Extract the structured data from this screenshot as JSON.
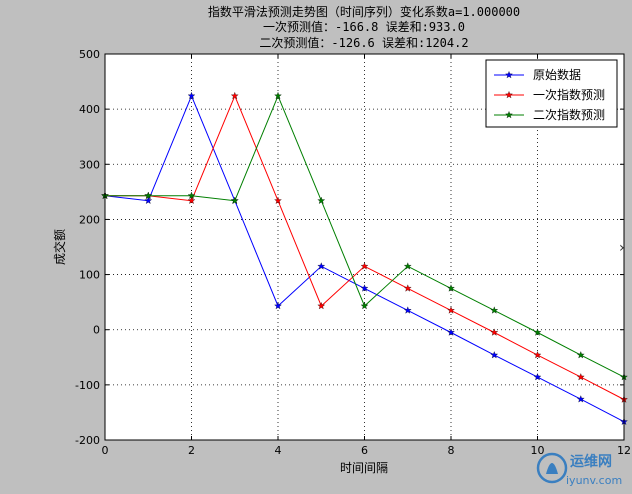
{
  "chart_data": {
    "type": "line",
    "title_lines": [
      "指数平滑法预测走势图（时间序列）变化系数a=1.000000",
      "一次预测值：-166.8   误差和:933.0",
      "二次预测值：-126.6   误差和:1204.2"
    ],
    "xlabel": "时间间隔",
    "ylabel": "成交额",
    "xlim": [
      0,
      12
    ],
    "ylim": [
      -200,
      500
    ],
    "xticks": [
      0,
      2,
      4,
      6,
      8,
      10,
      12
    ],
    "yticks": [
      -200,
      -100,
      0,
      100,
      200,
      300,
      400,
      500
    ],
    "grid": true,
    "legend_position": "top-right",
    "series": [
      {
        "name": "原始数据",
        "color": "#0000ff",
        "x": [
          0,
          1,
          2,
          3,
          4,
          5,
          6,
          7,
          8,
          9,
          10,
          11,
          12
        ],
        "y": [
          243,
          234,
          424,
          234,
          43,
          115,
          75,
          35,
          -5,
          -46,
          -86,
          -126,
          -166.8
        ]
      },
      {
        "name": "一次指数预测",
        "color": "#ff0000",
        "x": [
          0,
          1,
          2,
          3,
          4,
          5,
          6,
          7,
          8,
          9,
          10,
          11,
          12
        ],
        "y": [
          243,
          243,
          234,
          424,
          234,
          43,
          115,
          75,
          35,
          -5,
          -46,
          -86,
          -126.6
        ]
      },
      {
        "name": "二次指数预测",
        "color": "#007f00",
        "x": [
          0,
          1,
          2,
          3,
          4,
          5,
          6,
          7,
          8,
          9,
          10,
          11,
          12
        ],
        "y": [
          243,
          243,
          243,
          234,
          424,
          234,
          43,
          115,
          75,
          35,
          -5,
          -46,
          -86
        ]
      }
    ]
  },
  "watermark": {
    "brand": "运维网",
    "domain": "iyunv.com",
    "icon": "flame-logo-icon"
  }
}
